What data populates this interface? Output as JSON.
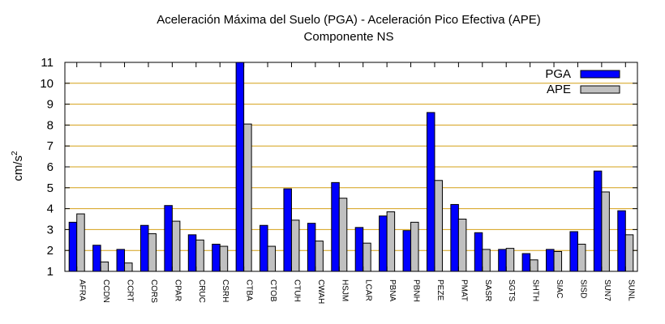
{
  "chart_data": {
    "type": "bar",
    "title": "Aceleración Máxima del Suelo (PGA) -  Aceleración Pico Efectiva (APE)",
    "subtitle": "Componente NS",
    "ylabel_base": "cm/s",
    "ylabel_exp": "2",
    "xlabel": "",
    "ylim": [
      1,
      11
    ],
    "yticks": [
      1,
      2,
      3,
      4,
      5,
      6,
      7,
      8,
      9,
      10,
      11
    ],
    "grid": true,
    "legend_position": "top-right",
    "categories": [
      "AFRA",
      "CCDN",
      "CCRT",
      "CORS",
      "CPAR",
      "CRUC",
      "CSRH",
      "CTBA",
      "CTOB",
      "CTUH",
      "CWAH",
      "HSJM",
      "LCAR",
      "PBNA",
      "PBNH",
      "PEZE",
      "PMAT",
      "SASR",
      "SGTS",
      "SHTH",
      "SIAC",
      "SISD",
      "SUN7",
      "SUNL"
    ],
    "series": [
      {
        "name": "PGA",
        "color": "#0000ff",
        "values": [
          3.35,
          2.25,
          2.05,
          3.2,
          4.15,
          2.75,
          2.3,
          11.0,
          3.2,
          4.95,
          3.3,
          5.25,
          3.1,
          3.65,
          2.95,
          8.6,
          4.2,
          2.85,
          2.05,
          1.85,
          2.05,
          2.9,
          5.8,
          3.9
        ]
      },
      {
        "name": "APE",
        "color": "#c0c0c0",
        "values": [
          3.75,
          1.45,
          1.4,
          2.8,
          3.4,
          2.5,
          2.2,
          8.05,
          2.2,
          3.45,
          2.45,
          4.5,
          2.35,
          3.85,
          3.35,
          5.35,
          3.5,
          2.05,
          2.1,
          1.55,
          1.95,
          2.3,
          4.8,
          2.75
        ]
      }
    ]
  }
}
